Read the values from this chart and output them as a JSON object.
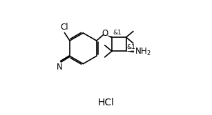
{
  "background_color": "#ffffff",
  "line_color": "#000000",
  "text_color": "#000000",
  "figure_width": 3.07,
  "figure_height": 1.67,
  "dpi": 100,
  "hcl_text": "HCl",
  "hcl_fontsize": 10,
  "label_fontsize": 8.5,
  "small_label_fontsize": 6.5,
  "lw": 1.2
}
